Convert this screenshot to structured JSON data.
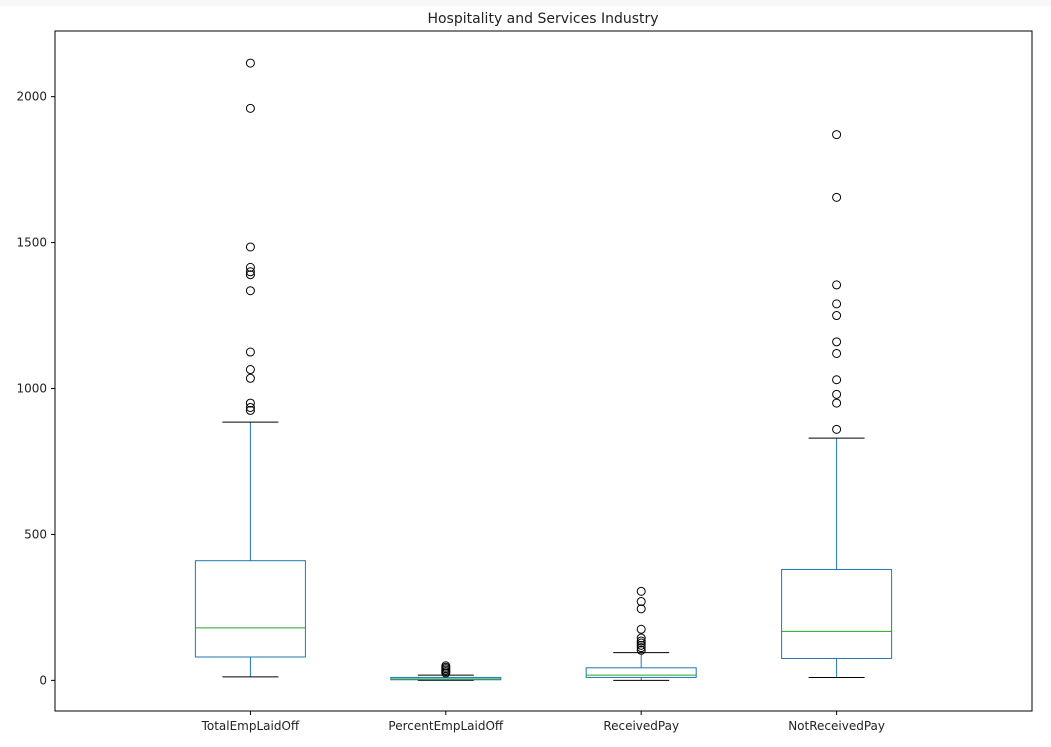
{
  "colors": {
    "box": "#1f77b4",
    "median": "#2ca02c",
    "whisker": "#1f77b4",
    "cap": "#000000",
    "flier": "#000000",
    "axis": "#000000",
    "background": "#ffffff"
  },
  "chart_data": {
    "type": "box",
    "title": "Hospitality and Services Industry",
    "xlabel": "",
    "ylabel": "",
    "ylim": [
      -105,
      2225
    ],
    "yticks": [
      0,
      500,
      1000,
      1500,
      2000
    ],
    "ytick_labels": [
      "0",
      "500",
      "1000",
      "1500",
      "2000"
    ],
    "grid": false,
    "legend": "none",
    "categories": [
      "TotalEmpLaidOff",
      "PercentEmpLaidOff",
      "ReceivedPay",
      "NotReceivedPay"
    ],
    "boxes": [
      {
        "label": "TotalEmpLaidOff",
        "whisker_low": 12,
        "q1": 80,
        "median": 180,
        "q3": 410,
        "whisker_high": 885,
        "fliers": [
          925,
          935,
          950,
          1035,
          1065,
          1125,
          1335,
          1390,
          1400,
          1415,
          1485,
          1960,
          2115
        ]
      },
      {
        "label": "PercentEmpLaidOff",
        "whisker_low": 0,
        "q1": 2,
        "median": 5,
        "q3": 10,
        "whisker_high": 18,
        "fliers": [
          25,
          30,
          35,
          40,
          45,
          50
        ]
      },
      {
        "label": "ReceivedPay",
        "whisker_low": 0,
        "q1": 10,
        "median": 18,
        "q3": 43,
        "whisker_high": 95,
        "fliers": [
          103,
          112,
          120,
          128,
          135,
          145,
          175,
          245,
          270,
          305
        ]
      },
      {
        "label": "NotReceivedPay",
        "whisker_low": 10,
        "q1": 75,
        "median": 168,
        "q3": 380,
        "whisker_high": 830,
        "fliers": [
          860,
          950,
          980,
          1030,
          1120,
          1160,
          1250,
          1290,
          1355,
          1655,
          1870
        ]
      }
    ]
  }
}
